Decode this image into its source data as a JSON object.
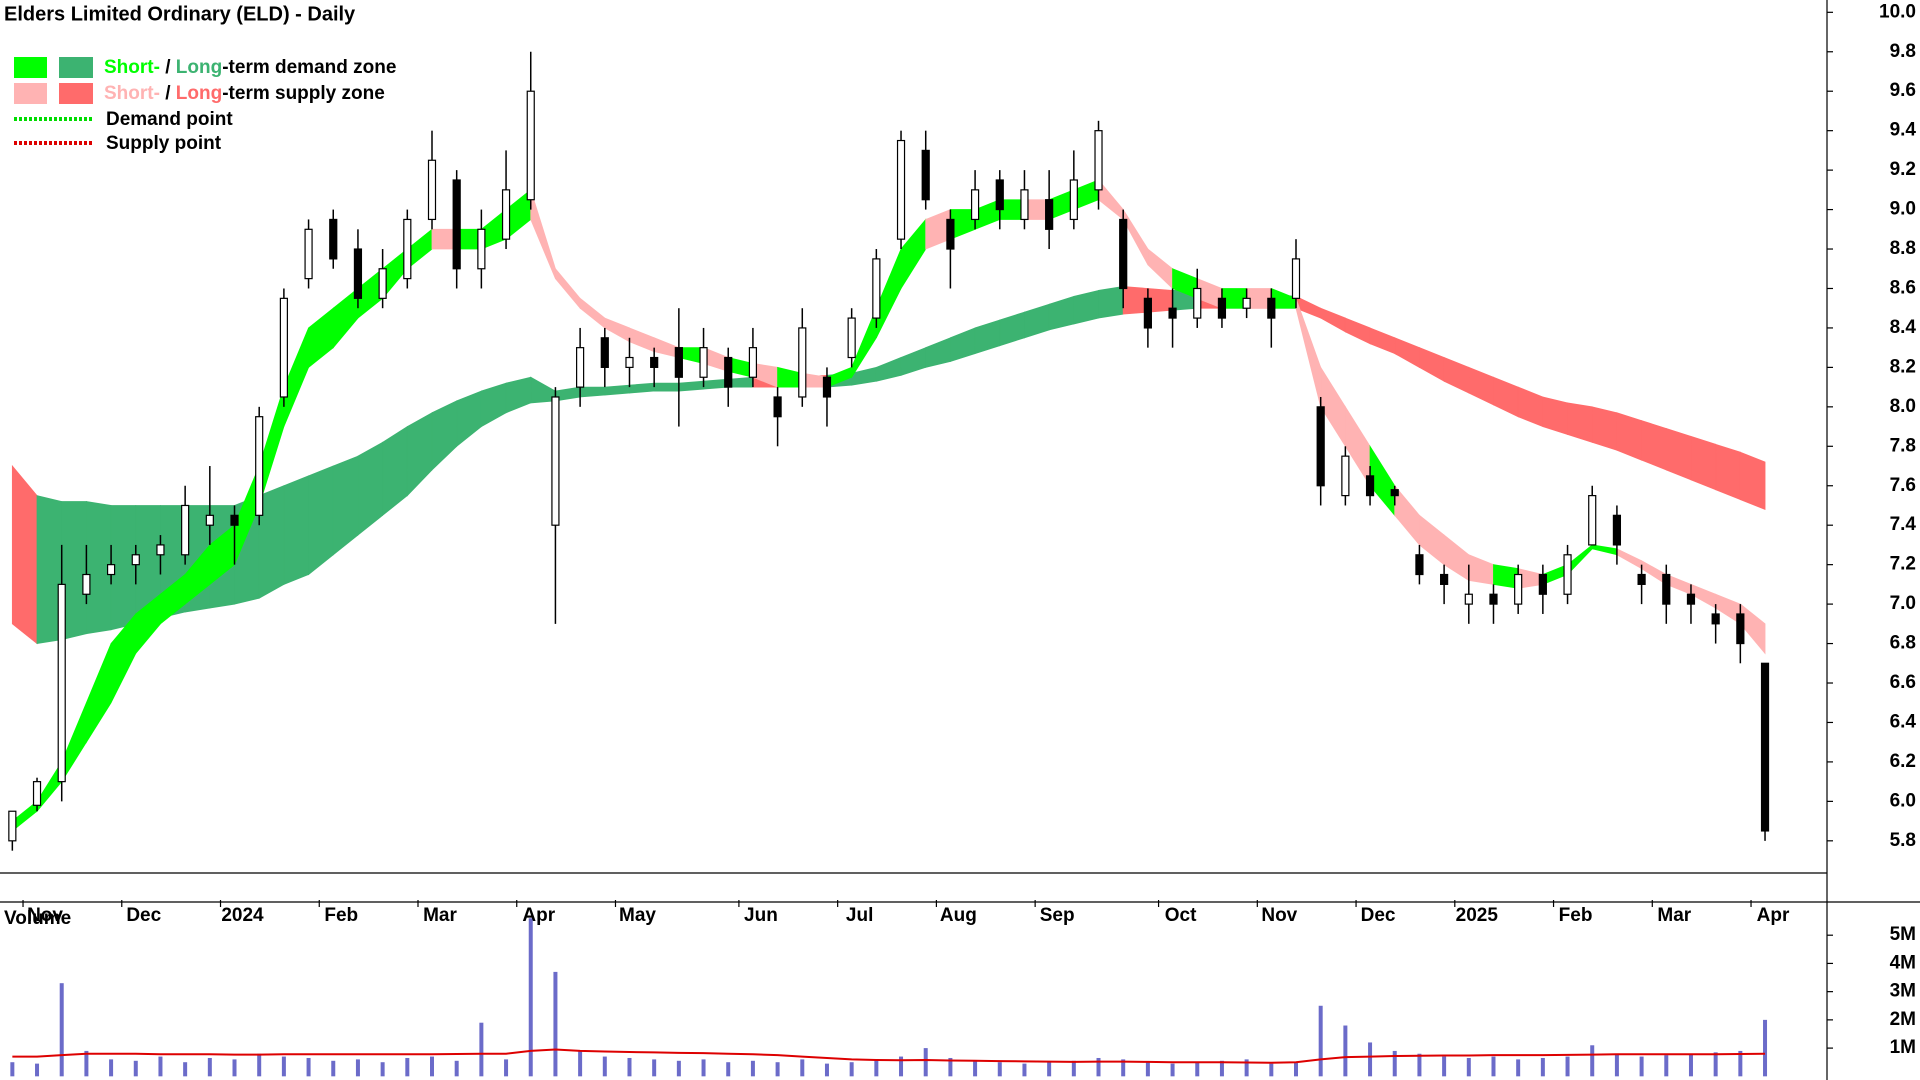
{
  "chart_data": {
    "type": "candlestick",
    "title": "Elders Limited Ordinary (ELD) - Daily",
    "categories": [
      null,
      "Nov",
      null,
      null,
      null,
      "Dec",
      null,
      null,
      null,
      "2024",
      null,
      null,
      null,
      "Feb",
      null,
      null,
      null,
      "Mar",
      null,
      null,
      null,
      "Apr",
      null,
      null,
      null,
      "May",
      null,
      null,
      null,
      null,
      "Jun",
      null,
      null,
      null,
      "Jul",
      null,
      null,
      null,
      "Aug",
      null,
      null,
      null,
      "Sep",
      null,
      null,
      null,
      null,
      "Oct",
      null,
      null,
      null,
      "Nov",
      null,
      null,
      null,
      "Dec",
      null,
      null,
      null,
      "2025",
      null,
      null,
      null,
      "Feb",
      null,
      null,
      null,
      "Mar",
      null,
      null,
      null,
      "Apr"
    ],
    "open": [
      5.8,
      5.98,
      6.1,
      7.05,
      7.15,
      7.2,
      7.25,
      7.25,
      7.4,
      7.45,
      7.45,
      8.05,
      8.65,
      8.95,
      8.8,
      8.55,
      8.65,
      8.95,
      9.15,
      8.7,
      8.85,
      9.05,
      7.4,
      8.1,
      8.35,
      8.2,
      8.25,
      8.3,
      8.15,
      8.25,
      8.15,
      8.05,
      8.05,
      8.15,
      8.25,
      8.45,
      8.85,
      9.3,
      8.95,
      8.95,
      9.15,
      8.95,
      9.05,
      8.95,
      9.1,
      8.95,
      8.55,
      8.5,
      8.45,
      8.55,
      8.5,
      8.55,
      8.55,
      8.0,
      7.55,
      7.65,
      7.58,
      7.25,
      7.15,
      7.0,
      7.05,
      7.0,
      7.15,
      7.05,
      7.3,
      7.45,
      7.15,
      7.15,
      7.05,
      6.95,
      6.95,
      6.7
    ],
    "high": [
      5.95,
      6.12,
      7.3,
      7.3,
      7.3,
      7.3,
      7.35,
      7.6,
      7.7,
      7.5,
      8.0,
      8.6,
      8.95,
      9.0,
      8.9,
      8.8,
      9.0,
      9.4,
      9.2,
      9.0,
      9.3,
      9.8,
      8.1,
      8.4,
      8.4,
      8.35,
      8.3,
      8.5,
      8.4,
      8.3,
      8.4,
      8.1,
      8.5,
      8.2,
      8.5,
      8.8,
      9.4,
      9.4,
      9.0,
      9.2,
      9.2,
      9.2,
      9.2,
      9.3,
      9.45,
      9.0,
      8.6,
      8.6,
      8.7,
      8.6,
      8.6,
      8.6,
      8.85,
      8.05,
      7.8,
      7.7,
      7.6,
      7.3,
      7.2,
      7.2,
      7.1,
      7.2,
      7.2,
      7.3,
      7.6,
      7.5,
      7.2,
      7.2,
      7.1,
      7.0,
      7.0,
      6.7
    ],
    "low": [
      5.75,
      5.95,
      6.0,
      7.0,
      7.1,
      7.1,
      7.15,
      7.2,
      7.3,
      7.2,
      7.4,
      8.0,
      8.6,
      8.7,
      8.5,
      8.5,
      8.6,
      8.9,
      8.6,
      8.6,
      8.8,
      9.0,
      6.9,
      8.0,
      8.1,
      8.1,
      8.1,
      7.9,
      8.1,
      8.0,
      8.1,
      7.8,
      8.0,
      7.9,
      8.2,
      8.4,
      8.8,
      9.0,
      8.6,
      8.9,
      8.9,
      8.9,
      8.8,
      8.9,
      9.0,
      8.5,
      8.3,
      8.3,
      8.4,
      8.4,
      8.45,
      8.3,
      8.5,
      7.5,
      7.5,
      7.5,
      7.5,
      7.1,
      7.0,
      6.9,
      6.9,
      6.95,
      6.95,
      7.0,
      7.3,
      7.2,
      7.0,
      6.9,
      6.9,
      6.8,
      6.7,
      5.8
    ],
    "close": [
      5.95,
      6.1,
      7.1,
      7.15,
      7.2,
      7.25,
      7.3,
      7.5,
      7.45,
      7.4,
      7.95,
      8.55,
      8.9,
      8.75,
      8.55,
      8.7,
      8.95,
      9.25,
      8.7,
      8.9,
      9.1,
      9.6,
      8.05,
      8.3,
      8.2,
      8.25,
      8.2,
      8.15,
      8.3,
      8.1,
      8.3,
      7.95,
      8.4,
      8.05,
      8.45,
      8.75,
      9.35,
      9.05,
      8.8,
      9.1,
      9.0,
      9.1,
      8.9,
      9.15,
      9.4,
      8.6,
      8.4,
      8.45,
      8.6,
      8.45,
      8.55,
      8.45,
      8.75,
      7.6,
      7.75,
      7.55,
      7.55,
      7.15,
      7.1,
      7.05,
      7.0,
      7.15,
      7.05,
      7.25,
      7.55,
      7.3,
      7.1,
      7.0,
      7.0,
      6.9,
      6.8,
      5.85
    ],
    "ylim": [
      5.5,
      10.05
    ],
    "yticks": [
      5.8,
      {
        "value": 6,
        "label": "6.0"
      },
      6.2,
      6.4,
      6.6,
      6.8,
      {
        "value": 7,
        "label": "7.0"
      },
      7.2,
      7.4,
      7.6,
      7.8,
      {
        "value": 8,
        "label": "8.0"
      },
      8.2,
      8.4,
      8.6,
      8.8,
      {
        "value": 9,
        "label": "9.0"
      },
      9.2,
      9.4,
      9.6,
      9.8,
      {
        "value": 10,
        "label": "10.0"
      }
    ],
    "zones": {
      "short": {
        "upper": [
          5.9,
          6.0,
          6.2,
          6.5,
          6.8,
          6.95,
          7.05,
          7.15,
          7.3,
          7.4,
          7.7,
          8.1,
          8.4,
          8.5,
          8.6,
          8.7,
          8.8,
          8.9,
          8.9,
          8.9,
          9.0,
          9.1,
          8.7,
          8.55,
          8.45,
          8.4,
          8.35,
          8.3,
          8.3,
          8.25,
          8.22,
          8.2,
          8.17,
          8.15,
          8.2,
          8.5,
          8.8,
          8.95,
          9.0,
          9.0,
          9.05,
          9.05,
          9.05,
          9.1,
          9.15,
          9.0,
          8.8,
          8.7,
          8.65,
          8.6,
          8.6,
          8.6,
          8.55,
          8.2,
          8.0,
          7.8,
          7.6,
          7.45,
          7.35,
          7.25,
          7.2,
          7.18,
          7.15,
          7.2,
          7.3,
          7.28,
          7.22,
          7.15,
          7.1,
          7.05,
          7.0,
          6.9
        ],
        "lower": [
          5.85,
          5.95,
          6.1,
          6.3,
          6.5,
          6.75,
          6.9,
          7.0,
          7.1,
          7.2,
          7.5,
          7.9,
          8.2,
          8.3,
          8.45,
          8.55,
          8.7,
          8.8,
          8.8,
          8.8,
          8.85,
          8.95,
          8.65,
          8.5,
          8.4,
          8.33,
          8.28,
          8.25,
          8.22,
          8.18,
          8.15,
          8.1,
          8.1,
          8.1,
          8.15,
          8.35,
          8.6,
          8.8,
          8.85,
          8.9,
          8.95,
          8.95,
          8.95,
          9.0,
          9.05,
          8.95,
          8.72,
          8.6,
          8.55,
          8.5,
          8.5,
          8.5,
          8.5,
          8.0,
          7.8,
          7.6,
          7.45,
          7.3,
          7.2,
          7.12,
          7.1,
          7.08,
          7.1,
          7.15,
          7.28,
          7.25,
          7.18,
          7.1,
          7.05,
          6.98,
          6.9,
          6.75
        ]
      },
      "long": {
        "upper": [
          7.7,
          7.55,
          7.52,
          7.52,
          7.5,
          7.5,
          7.5,
          7.5,
          7.5,
          7.5,
          7.55,
          7.6,
          7.65,
          7.7,
          7.75,
          7.82,
          7.9,
          7.97,
          8.03,
          8.08,
          8.12,
          8.15,
          8.08,
          8.1,
          8.1,
          8.11,
          8.12,
          8.12,
          8.13,
          8.14,
          8.15,
          8.15,
          8.15,
          8.16,
          8.17,
          8.2,
          8.25,
          8.3,
          8.35,
          8.4,
          8.44,
          8.48,
          8.52,
          8.56,
          8.59,
          8.61,
          8.6,
          8.59,
          8.59,
          8.59,
          8.58,
          8.57,
          8.56,
          8.5,
          8.45,
          8.4,
          8.35,
          8.3,
          8.25,
          8.2,
          8.15,
          8.1,
          8.05,
          8.02,
          8.0,
          7.97,
          7.93,
          7.89,
          7.85,
          7.81,
          7.77,
          7.72
        ],
        "lower": [
          6.9,
          6.8,
          6.82,
          6.85,
          6.87,
          6.9,
          6.93,
          6.96,
          6.98,
          7.0,
          7.03,
          7.1,
          7.15,
          7.25,
          7.35,
          7.45,
          7.55,
          7.68,
          7.8,
          7.9,
          7.97,
          8.02,
          8.03,
          8.05,
          8.06,
          8.07,
          8.08,
          8.08,
          8.09,
          8.1,
          8.1,
          8.1,
          8.1,
          8.1,
          8.11,
          8.13,
          8.16,
          8.2,
          8.23,
          8.27,
          8.31,
          8.35,
          8.39,
          8.42,
          8.45,
          8.47,
          8.48,
          8.49,
          8.5,
          8.5,
          8.5,
          8.5,
          8.5,
          8.45,
          8.38,
          8.32,
          8.27,
          8.2,
          8.13,
          8.07,
          8.01,
          7.95,
          7.9,
          7.86,
          7.82,
          7.78,
          7.73,
          7.68,
          7.63,
          7.58,
          7.53,
          7.48
        ]
      }
    },
    "colors": {
      "short_demand": "#00ff00",
      "long_demand": "#3cb371",
      "short_supply": "#ffb3b3",
      "long_supply": "#ff6b6b",
      "demand_point": "#00dd00",
      "supply_point": "#dd0000",
      "candle": "#000000"
    },
    "legend": {
      "demand_zone": [
        "Short-",
        " / ",
        "Long",
        "-term demand zone"
      ],
      "supply_zone": [
        "Short-",
        " / ",
        "Long",
        "-term supply zone"
      ],
      "demand_point": "Demand point",
      "supply_point": "Supply point"
    },
    "volume": {
      "title": "Volume",
      "color": "#6b6bc9",
      "values": [
        500000,
        450000,
        3300000,
        900000,
        600000,
        550000,
        700000,
        500000,
        650000,
        600000,
        800000,
        700000,
        650000,
        550000,
        600000,
        500000,
        650000,
        700000,
        550000,
        1900000,
        600000,
        5600000,
        3700000,
        900000,
        700000,
        650000,
        600000,
        550000,
        600000,
        500000,
        550000,
        500000,
        600000,
        450000,
        500000,
        600000,
        700000,
        1000000,
        650000,
        550000,
        500000,
        450000,
        500000,
        550000,
        650000,
        600000,
        500000,
        450000,
        500000,
        550000,
        600000,
        450000,
        500000,
        2500000,
        1800000,
        1200000,
        900000,
        800000,
        700000,
        650000,
        700000,
        600000,
        650000,
        700000,
        1100000,
        800000,
        700000,
        750000,
        800000,
        850000,
        900000,
        2000000
      ],
      "average": {
        "color": "#dd0000",
        "values": [
          700000,
          700000,
          750000,
          800000,
          800000,
          800000,
          780000,
          780000,
          780000,
          770000,
          770000,
          780000,
          780000,
          780000,
          780000,
          780000,
          780000,
          780000,
          790000,
          800000,
          800000,
          900000,
          950000,
          900000,
          880000,
          860000,
          850000,
          830000,
          820000,
          800000,
          780000,
          750000,
          700000,
          650000,
          600000,
          580000,
          570000,
          580000,
          560000,
          550000,
          540000,
          530000,
          520000,
          510000,
          520000,
          520000,
          510000,
          500000,
          500000,
          500000,
          490000,
          480000,
          500000,
          600000,
          680000,
          700000,
          720000,
          730000,
          740000,
          740000,
          750000,
          750000,
          750000,
          760000,
          770000,
          780000,
          780000,
          780000,
          780000,
          780000,
          790000,
          800000
        ]
      },
      "ylim": [
        0,
        5900000
      ],
      "yticks": [
        {
          "value": 1000000,
          "label": "1M"
        },
        {
          "value": 2000000,
          "label": "2M"
        },
        {
          "value": 3000000,
          "label": "3M"
        },
        {
          "value": 4000000,
          "label": "4M"
        },
        {
          "value": 5000000,
          "label": "5M"
        }
      ]
    }
  }
}
